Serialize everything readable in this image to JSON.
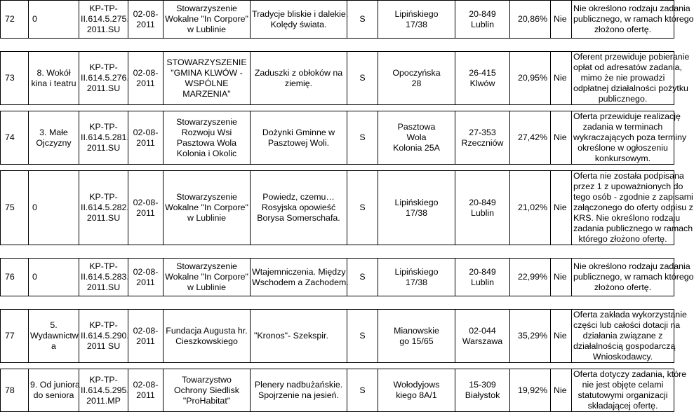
{
  "rows": [
    {
      "lp": "72",
      "lp_extra": "0",
      "area": "",
      "id": [
        "KP-TP-",
        "II.614.5.275.",
        "2011.SU"
      ],
      "date": [
        "02-08-",
        "2011"
      ],
      "org": [
        "Stowarzyszenie",
        "Wokalne \"In Corpore\"",
        "w Lublinie"
      ],
      "title": [
        "Tradycje bliskie i dalekie.",
        "Kolędy świata."
      ],
      "status": "S",
      "address": [
        "Lipińskiego",
        "17/38"
      ],
      "city": [
        "20-849",
        "Lublin"
      ],
      "pct": "20,86%",
      "decision": "Nie",
      "note": [
        "Nie określono rodzaju zadania",
        "publicznego, w ramach którego",
        "złożono ofertę."
      ]
    },
    {
      "lp": "73",
      "lp_extra": "",
      "area": [
        "8. Wokół",
        "kina i teatru"
      ],
      "id": [
        "KP-TP-",
        "II.614.5.276.",
        "2011.SU"
      ],
      "date": [
        "02-08-",
        "2011"
      ],
      "org": [
        "STOWARZYSZENIE",
        "\"GMINA KLWÓW -",
        "WSPÓLNE",
        "MARZENIA\""
      ],
      "title": [
        "Zaduszki z obłoków na",
        "ziemię."
      ],
      "status": "S",
      "address": [
        "Opoczyńska",
        "28"
      ],
      "city": [
        "26-415",
        "Klwów"
      ],
      "pct": "20,95%",
      "decision": "Nie",
      "note": [
        "Oferent przewiduje pobieranie",
        "opłat od adresatów zadania,",
        "mimo że nie prowadzi",
        "odpłatnej działalności pożytku",
        "publicznego."
      ]
    },
    {
      "lp": "74",
      "lp_extra": "",
      "area": [
        "3. Małe",
        "Ojczyzny"
      ],
      "id": [
        "KP-TP-",
        "II.614.5.281.",
        "2011.SU"
      ],
      "date": [
        "02-08-",
        "2011"
      ],
      "org": [
        "Stowarzyszenie",
        "Rozwoju Wsi",
        "Pasztowa Wola",
        "Kolonia i Okolic"
      ],
      "title": [
        "Dożynki Gminne w",
        "Pasztowej Woli."
      ],
      "status": "S",
      "address": [
        "Pasztowa",
        "Wola",
        "Kolonia 25A"
      ],
      "city": [
        "27-353",
        "Rzeczniów"
      ],
      "pct": "27,42%",
      "decision": "Nie",
      "note": [
        "Oferta przewiduje realizację",
        "zadania w terminach",
        "wykraczających poza terminy",
        "określone w ogłoszeniu",
        "konkursowym."
      ]
    },
    {
      "lp": "75",
      "lp_extra": "0",
      "area": "",
      "id": [
        "KP-TP-",
        "II.614.5.282.",
        "2011.SU"
      ],
      "date": [
        "02-08-",
        "2011"
      ],
      "org": [
        "Stowarzyszenie",
        "Wokalne \"In Corpore\"",
        "w Lublinie"
      ],
      "title": [
        "Powiedz, czemu…",
        "Rosyjska opowieść",
        "Borysa Somerschafa."
      ],
      "status": "S",
      "address": [
        "Lipińskiego",
        "17/38"
      ],
      "city": [
        "20-849",
        "Lublin"
      ],
      "pct": "21,02%",
      "decision": "Nie",
      "note": [
        "Oferta nie została podpisana",
        "przez 1 z upoważnionych do",
        "tego osób - zgodnie z zapisami",
        "załączonego do oferty odpisu z",
        "KRS. Nie określono rodzaju",
        "zadania publicznego w ramach",
        "którego złożono ofertę."
      ]
    },
    {
      "lp": "76",
      "lp_extra": "0",
      "area": "",
      "id": [
        "KP-TP-",
        "II.614.5.283.",
        "2011.SU"
      ],
      "date": [
        "02-08-",
        "2011"
      ],
      "org": [
        "Stowarzyszenie",
        "Wokalne \"In Corpore\"",
        "w Lublinie"
      ],
      "title": [
        "Wtajemniczenia. Między",
        "Wschodem a Zachodem."
      ],
      "status": "S",
      "address": [
        "Lipińskiego",
        "17/38"
      ],
      "city": [
        "20-849",
        "Lublin"
      ],
      "pct": "22,99%",
      "decision": "Nie",
      "note": [
        "Nie określono rodzaju zadania",
        "publicznego, w ramach którego",
        "złożono ofertę."
      ]
    },
    {
      "lp": "77",
      "lp_extra": "",
      "area": [
        "5.",
        "Wydawnictw",
        "a"
      ],
      "id": [
        "KP-TP-",
        "II.614.5.290.",
        "2011 SU"
      ],
      "date": [
        "02-08-",
        "2011"
      ],
      "org": [
        "Fundacja Augusta hr.",
        "Cieszkowskiego"
      ],
      "title": [
        "\"Kronos\"- Szekspir."
      ],
      "status": "S",
      "address": [
        "Mianowskie",
        "go 15/65"
      ],
      "city": [
        "02-044",
        "Warszawa"
      ],
      "pct": "35,29%",
      "decision": "Nie",
      "note": [
        "Oferta zakłada wykorzystanie",
        "części lub całości dotacji na",
        "działania związane z",
        "działalnością gospodarczą",
        "Wnioskodawcy."
      ]
    },
    {
      "lp": "78",
      "lp_extra": "",
      "area": [
        "9. Od juniora",
        "do seniora"
      ],
      "id": [
        "KP-TP-",
        "II.614.5.295.",
        "2011.MP"
      ],
      "date": [
        "02-08-",
        "2011"
      ],
      "org": [
        "Towarzystwo",
        "Ochrony Siedlisk",
        "\"ProHabitat\""
      ],
      "title": [
        "Plenery nadbużańskie.",
        "Spojrzenie na jesień."
      ],
      "status": "S",
      "address": [
        "Wołodyjows",
        "kiego 8A/1"
      ],
      "city": [
        "15-309",
        "Białystok"
      ],
      "pct": "19,92%",
      "decision": "Nie",
      "note": [
        "Oferta dotyczy zadania, które",
        "nie jest objęte celami",
        "statutowymi organizacji",
        "składającej ofertę."
      ]
    }
  ]
}
